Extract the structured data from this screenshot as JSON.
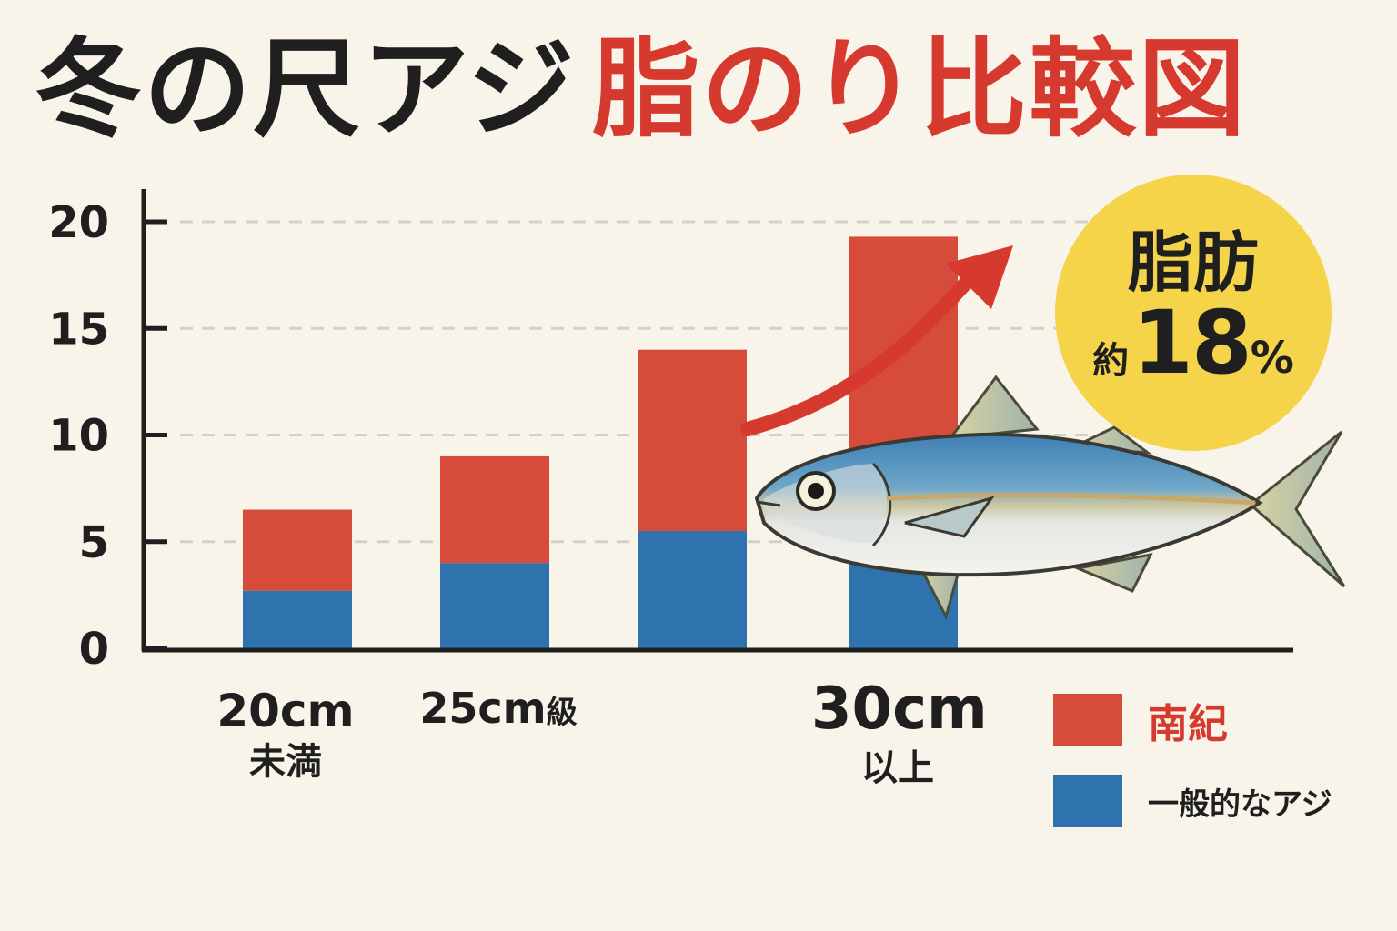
{
  "title": {
    "part1": "冬の尺アジ",
    "part2": "脂のり比較図"
  },
  "colors": {
    "nanki": "#d64b3a",
    "general": "#2e73ad",
    "title_dark": "#1f1f1f",
    "title_red": "#d63a2f",
    "badge": "#f5d44a",
    "background": "#f8f4ea"
  },
  "badge": {
    "top": "脂肪",
    "prefix": "約",
    "value": "18",
    "unit": "%"
  },
  "xlabels": [
    {
      "main": "20cm",
      "sub": "未満"
    },
    {
      "main": "25cm",
      "sub": "級"
    },
    {
      "main": "30cm",
      "sub": "以上"
    }
  ],
  "legend": [
    {
      "label": "南紀"
    },
    {
      "label": "一般的なアジ"
    }
  ],
  "chart_data": {
    "type": "bar",
    "stacked": true,
    "categories": [
      "20cm未満",
      "25cm級",
      "",
      "30cm以上"
    ],
    "series": [
      {
        "name": "一般的なアジ",
        "values": [
          2.7,
          4.0,
          5.5,
          4.3
        ]
      },
      {
        "name": "南紀",
        "values": [
          3.8,
          5.0,
          8.5,
          15.0
        ]
      }
    ],
    "ylim": [
      0,
      20
    ],
    "yticks": [
      "0",
      "5",
      "10",
      "15",
      "20"
    ],
    "grid": true,
    "legend_position": "bottom-right",
    "annotation": "脂肪 約18%"
  }
}
